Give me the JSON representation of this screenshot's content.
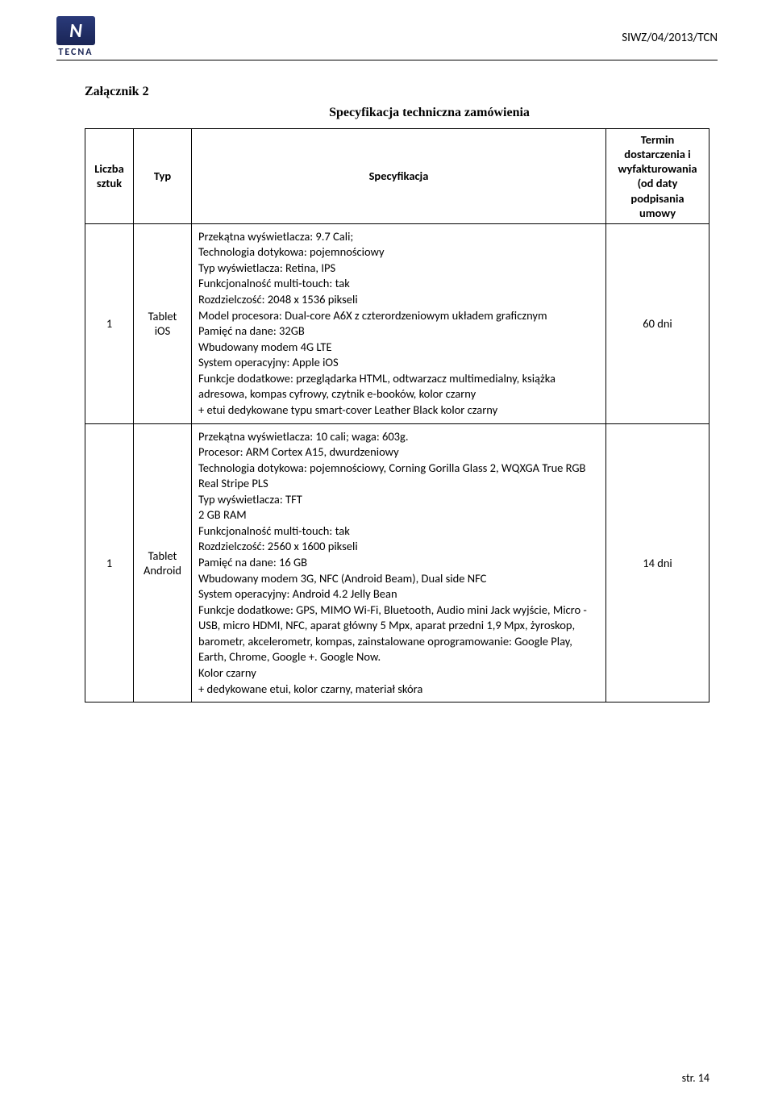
{
  "header": {
    "doc_code": "SIWZ/04/2013/TCN",
    "logo_letter": "N",
    "logo_text": "TECNA"
  },
  "titles": {
    "attachment": "Załącznik 2",
    "spec_heading": "Specyfikacja techniczna zamówienia"
  },
  "table": {
    "headers": {
      "qty": "Liczba sztuk",
      "type": "Typ",
      "spec": "Specyfikacja",
      "term": "Termin dostarczenia i wyfakturowania (od daty podpisania umowy"
    },
    "rows": [
      {
        "qty": "1",
        "type": "Tablet iOS",
        "spec": "Przekątna wyświetlacza: 9.7 Cali;\nTechnologia dotykowa: pojemnościowy\nTyp wyświetlacza: Retina, IPS\nFunkcjonalność multi-touch: tak\nRozdzielczość: 2048 x 1536 pikseli\nModel procesora: Dual-core A6X z czterordzeniowym układem graficznym\nPamięć na dane: 32GB\nWbudowany modem 4G LTE\nSystem operacyjny: Apple iOS\nFunkcje dodatkowe: przeglądarka HTML, odtwarzacz multimedialny, książka adresowa, kompas cyfrowy, czytnik e-booków, kolor czarny\n+ etui dedykowane typu smart-cover Leather Black kolor czarny",
        "term": "60 dni"
      },
      {
        "qty": "1",
        "type": "Tablet Android",
        "spec": "Przekątna wyświetlacza: 10 cali;  waga: 603g.\nProcesor: ARM Cortex A15, dwurdzeniowy\nTechnologia dotykowa: pojemnościowy, Corning Gorilla Glass 2, WQXGA True RGB Real Stripe PLS\nTyp wyświetlacza: TFT\n2 GB RAM\nFunkcjonalność multi-touch: tak\nRozdzielczość: 2560 x 1600 pikseli\nPamięć na dane: 16 GB\nWbudowany modem 3G, NFC (Android Beam), Dual side NFC\nSystem operacyjny: Android 4.2 Jelly Bean\nFunkcje dodatkowe: GPS, MIMO Wi-Fi, Bluetooth, Audio mini Jack wyjście, Micro - USB, micro HDMI, NFC, aparat główny 5 Mpx, aparat przedni 1,9 Mpx, żyroskop, barometr, akcelerometr, kompas, zainstalowane oprogramowanie: Google Play, Earth, Chrome, Google +. Google Now.\nKolor czarny\n+ dedykowane etui, kolor czarny, materiał skóra",
        "term": "14 dni"
      }
    ]
  },
  "footer": {
    "page": "str. 14"
  }
}
